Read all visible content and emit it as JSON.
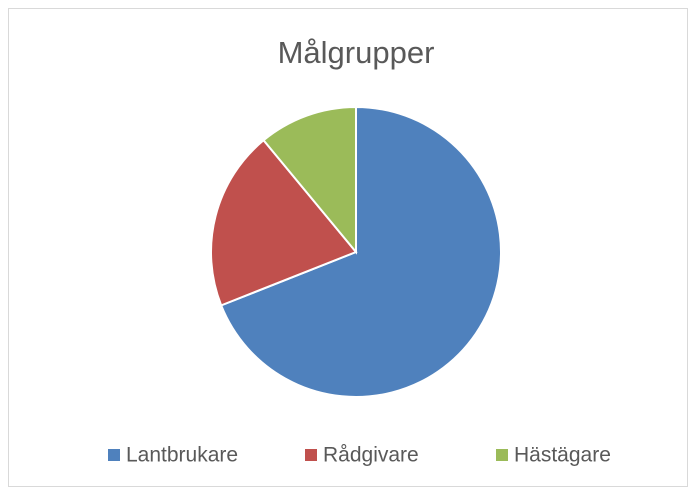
{
  "chart_data": {
    "type": "pie",
    "title": "Målgrupper",
    "categories": [
      "Lantbrukare",
      "Rådgivare",
      "Hästägare"
    ],
    "values": [
      69,
      20,
      11
    ],
    "colors": [
      "#4f81bd",
      "#c0504d",
      "#9bbb59"
    ],
    "legend": "bottom"
  }
}
